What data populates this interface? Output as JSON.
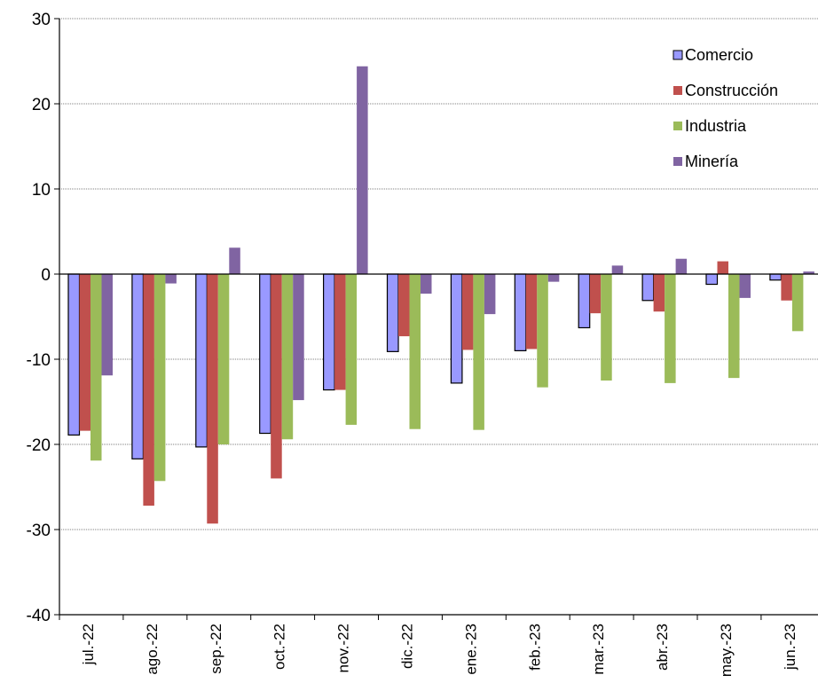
{
  "chart_data": {
    "type": "bar",
    "categories": [
      "jul.-22",
      "ago.-22",
      "sep.-22",
      "oct.-22",
      "nov.-22",
      "dic.-22",
      "ene.-23",
      "feb.-23",
      "mar.-23",
      "abr.-23",
      "may.-23",
      "jun.-23"
    ],
    "series": [
      {
        "name": "Comercio",
        "color": "#9999ff",
        "values": [
          -18.9,
          -21.7,
          -20.3,
          -18.7,
          -13.6,
          -9.1,
          -12.8,
          -9.0,
          -6.3,
          -3.1,
          -1.2,
          -0.7
        ]
      },
      {
        "name": "Construcción",
        "color": "#c0504d",
        "values": [
          -18.4,
          -27.2,
          -29.3,
          -24.0,
          -13.6,
          -7.3,
          -8.9,
          -8.8,
          -4.6,
          -4.4,
          1.5,
          -3.1
        ]
      },
      {
        "name": "Industria",
        "color": "#9bbb59",
        "values": [
          -21.9,
          -24.3,
          -20.0,
          -19.4,
          -17.7,
          -18.2,
          -18.3,
          -13.3,
          -12.5,
          -12.8,
          -12.2,
          -6.7
        ]
      },
      {
        "name": "Minería",
        "color": "#8064a2",
        "values": [
          -11.9,
          -1.1,
          3.1,
          -14.8,
          24.4,
          -2.3,
          -4.7,
          -0.9,
          1.0,
          1.8,
          -2.8,
          0.3
        ]
      }
    ],
    "ylim": [
      -40,
      30
    ],
    "yticks": [
      30,
      20,
      10,
      0,
      -10,
      -20,
      -30,
      -40
    ],
    "grid": true,
    "legend_position": "top-right",
    "title": "",
    "xlabel": "",
    "ylabel": ""
  }
}
